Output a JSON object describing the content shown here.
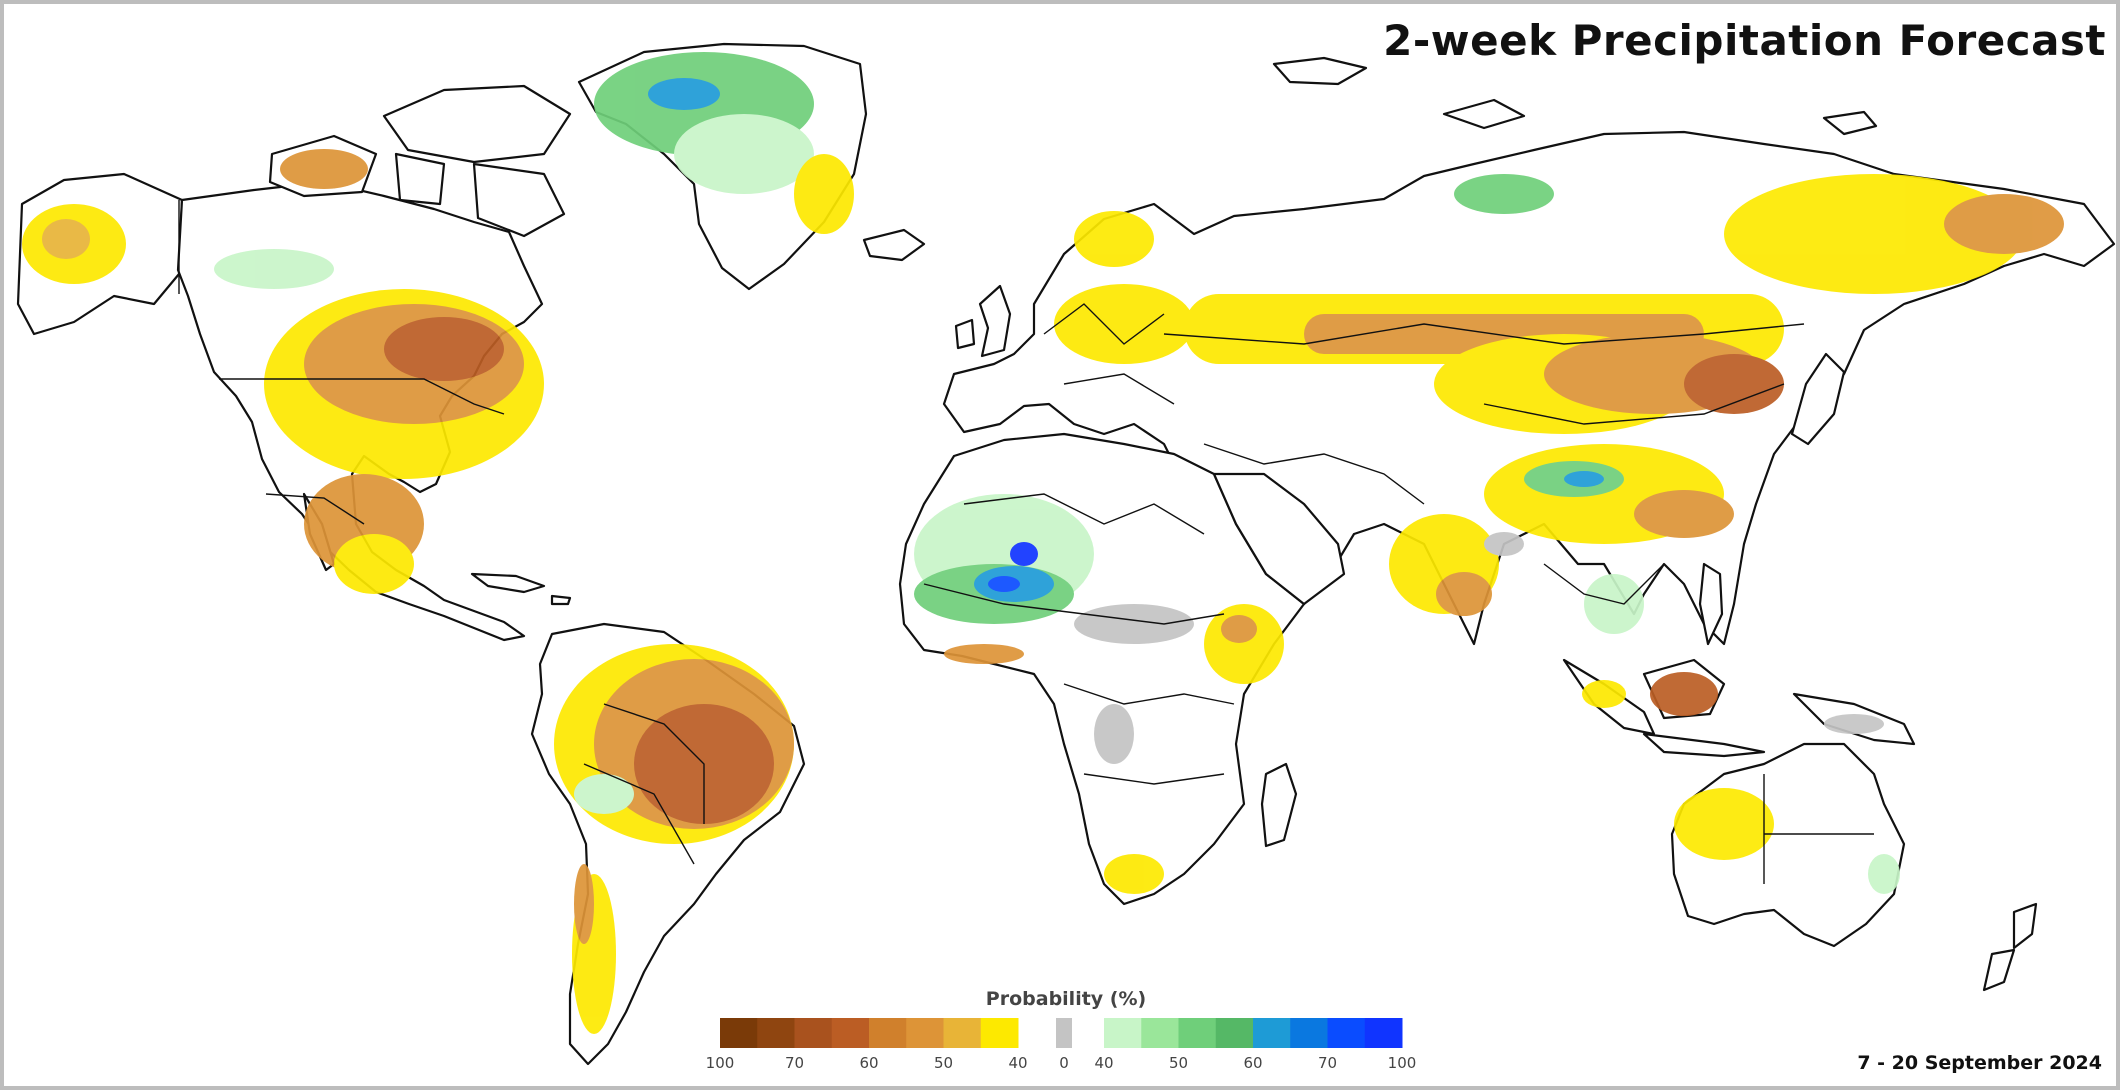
{
  "title": "2-week Precipitation Forecast",
  "date_range": "7 - 20 September 2024",
  "legend": {
    "title": "Probability (%)",
    "dry_colors": [
      "#7a3a08",
      "#8f4510",
      "#a9521e",
      "#bb5d24",
      "#d0802c",
      "#dd9437",
      "#e8b437",
      "#fde900"
    ],
    "dry_ticks": [
      "100",
      "70",
      "60",
      "50",
      "40"
    ],
    "normal_color": "#c4c4c4",
    "normal_tick": "0",
    "wet_colors": [
      "#c8f5c8",
      "#9ae69a",
      "#6fcf7a",
      "#55b866",
      "#1e9bd6",
      "#0a78e0",
      "#0a4cff",
      "#1034ff"
    ],
    "wet_ticks": [
      "40",
      "50",
      "60",
      "70",
      "100"
    ]
  },
  "colors": {
    "dry_light": "#fde900",
    "dry_mid": "#dd9437",
    "dry_strong": "#bb5d24",
    "wet_light": "#c8f5c8",
    "wet_mid": "#6fcf7a",
    "wet_strong": "#1e9bd6",
    "wet_max": "#1034ff",
    "normal": "#c4c4c4"
  }
}
